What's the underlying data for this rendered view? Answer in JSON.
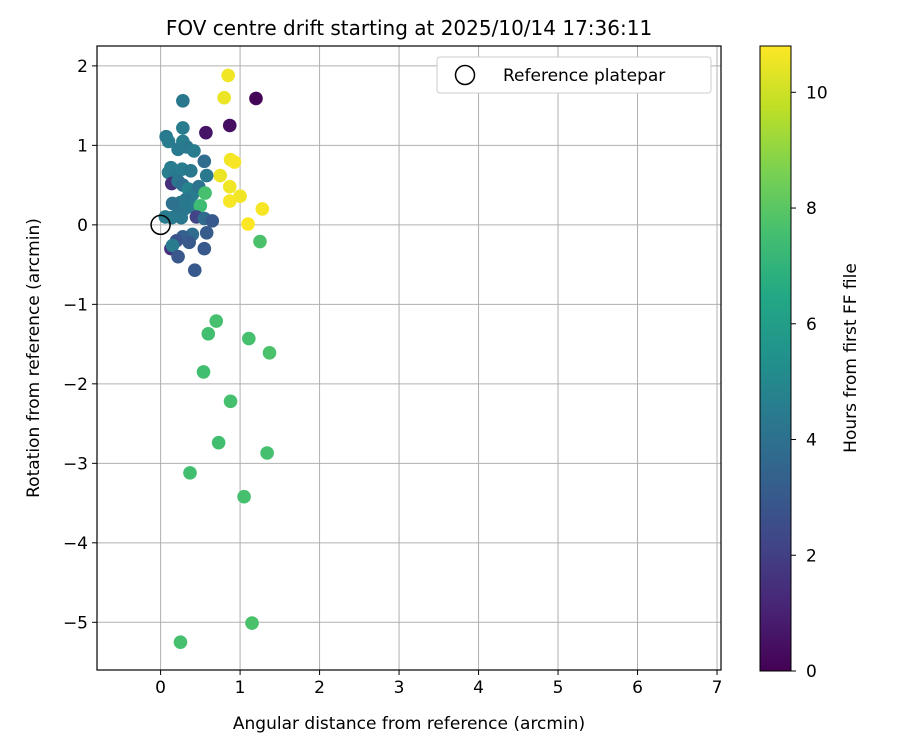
{
  "chart_data": {
    "type": "scatter",
    "title": "FOV centre drift starting at 2025/10/14 17:36:11",
    "xlabel": "Angular distance from reference (arcmin)",
    "ylabel": "Rotation from reference (arcmin)",
    "xlim": [
      -0.8,
      7.05
    ],
    "ylim": [
      -5.6,
      2.25
    ],
    "xticks": [
      0,
      1,
      2,
      3,
      4,
      5,
      6,
      7
    ],
    "yticks": [
      2,
      1,
      0,
      -1,
      -2,
      -3,
      -4,
      -5
    ],
    "grid": true,
    "legend": {
      "position": "top-right",
      "label": "Reference platepar"
    },
    "reference_point": {
      "x": 0,
      "y": 0
    },
    "colorbar": {
      "label": "Hours from first FF file",
      "colormap": "viridis",
      "min": 0,
      "max": 10.8,
      "ticks": [
        0,
        2,
        4,
        6,
        8,
        10
      ]
    },
    "points": [
      {
        "x": 0.85,
        "y": 1.88,
        "c": 10.6
      },
      {
        "x": 0.8,
        "y": 1.6,
        "c": 10.5
      },
      {
        "x": 1.2,
        "y": 1.59,
        "c": 0.1
      },
      {
        "x": 0.87,
        "y": 1.25,
        "c": 0.4
      },
      {
        "x": 0.57,
        "y": 1.16,
        "c": 0.6
      },
      {
        "x": 0.88,
        "y": 0.82,
        "c": 10.6
      },
      {
        "x": 0.93,
        "y": 0.79,
        "c": 10.7
      },
      {
        "x": 0.75,
        "y": 0.62,
        "c": 10.5
      },
      {
        "x": 0.87,
        "y": 0.48,
        "c": 10.6
      },
      {
        "x": 1.0,
        "y": 0.36,
        "c": 10.6
      },
      {
        "x": 0.87,
        "y": 0.3,
        "c": 10.7
      },
      {
        "x": 1.28,
        "y": 0.2,
        "c": 10.7
      },
      {
        "x": 1.1,
        "y": 0.01,
        "c": 10.8
      },
      {
        "x": 0.28,
        "y": 1.56,
        "c": 4.3
      },
      {
        "x": 0.28,
        "y": 1.22,
        "c": 4.5
      },
      {
        "x": 0.07,
        "y": 1.11,
        "c": 4.4
      },
      {
        "x": 0.1,
        "y": 1.05,
        "c": 4.5
      },
      {
        "x": 0.28,
        "y": 1.05,
        "c": 4.6
      },
      {
        "x": 0.33,
        "y": 0.98,
        "c": 4.3
      },
      {
        "x": 0.22,
        "y": 0.95,
        "c": 4.4
      },
      {
        "x": 0.42,
        "y": 0.93,
        "c": 4.5
      },
      {
        "x": 0.55,
        "y": 0.8,
        "c": 3.8
      },
      {
        "x": 0.13,
        "y": 0.72,
        "c": 4.5
      },
      {
        "x": 0.1,
        "y": 0.66,
        "c": 4.6
      },
      {
        "x": 0.18,
        "y": 0.63,
        "c": 4.4
      },
      {
        "x": 0.27,
        "y": 0.7,
        "c": 4.5
      },
      {
        "x": 0.38,
        "y": 0.68,
        "c": 4.3
      },
      {
        "x": 0.58,
        "y": 0.62,
        "c": 4.3
      },
      {
        "x": 0.14,
        "y": 0.52,
        "c": 1.5
      },
      {
        "x": 0.22,
        "y": 0.55,
        "c": 4.2
      },
      {
        "x": 0.28,
        "y": 0.5,
        "c": 3.9
      },
      {
        "x": 0.35,
        "y": 0.45,
        "c": 4.8
      },
      {
        "x": 0.4,
        "y": 0.38,
        "c": 4.5
      },
      {
        "x": 0.48,
        "y": 0.48,
        "c": 4.1
      },
      {
        "x": 0.56,
        "y": 0.4,
        "c": 7.6
      },
      {
        "x": 0.32,
        "y": 0.32,
        "c": 4.2
      },
      {
        "x": 0.25,
        "y": 0.28,
        "c": 4.3
      },
      {
        "x": 0.15,
        "y": 0.27,
        "c": 4.0
      },
      {
        "x": 0.42,
        "y": 0.22,
        "c": 4.5
      },
      {
        "x": 0.5,
        "y": 0.24,
        "c": 7.4
      },
      {
        "x": 0.3,
        "y": 0.2,
        "c": 4.3
      },
      {
        "x": 0.22,
        "y": 0.14,
        "c": 4.1
      },
      {
        "x": 0.06,
        "y": 0.1,
        "c": 4.5
      },
      {
        "x": 0.14,
        "y": 0.09,
        "c": 4.4
      },
      {
        "x": 0.26,
        "y": 0.09,
        "c": 4.3
      },
      {
        "x": 0.45,
        "y": 0.1,
        "c": 2.2
      },
      {
        "x": 0.55,
        "y": 0.08,
        "c": 3.7
      },
      {
        "x": 0.65,
        "y": 0.05,
        "c": 3.0
      },
      {
        "x": 0.58,
        "y": -0.1,
        "c": 3.1
      },
      {
        "x": 0.4,
        "y": -0.12,
        "c": 3.8
      },
      {
        "x": 0.28,
        "y": -0.15,
        "c": 3.3
      },
      {
        "x": 0.2,
        "y": -0.2,
        "c": 2.8
      },
      {
        "x": 0.36,
        "y": -0.22,
        "c": 3.0
      },
      {
        "x": 0.13,
        "y": -0.3,
        "c": 1.5
      },
      {
        "x": 0.15,
        "y": -0.26,
        "c": 4.5
      },
      {
        "x": 0.55,
        "y": -0.3,
        "c": 3.0
      },
      {
        "x": 0.22,
        "y": -0.4,
        "c": 2.9
      },
      {
        "x": 0.43,
        "y": -0.57,
        "c": 3.0
      },
      {
        "x": 1.25,
        "y": -0.21,
        "c": 7.7
      },
      {
        "x": 0.7,
        "y": -1.21,
        "c": 7.6
      },
      {
        "x": 0.6,
        "y": -1.37,
        "c": 7.5
      },
      {
        "x": 1.11,
        "y": -1.43,
        "c": 7.6
      },
      {
        "x": 1.37,
        "y": -1.61,
        "c": 7.7
      },
      {
        "x": 0.54,
        "y": -1.85,
        "c": 7.5
      },
      {
        "x": 0.88,
        "y": -2.22,
        "c": 7.6
      },
      {
        "x": 0.73,
        "y": -2.74,
        "c": 7.5
      },
      {
        "x": 1.34,
        "y": -2.87,
        "c": 7.6
      },
      {
        "x": 0.37,
        "y": -3.12,
        "c": 7.5
      },
      {
        "x": 1.05,
        "y": -3.42,
        "c": 7.6
      },
      {
        "x": 1.15,
        "y": -5.01,
        "c": 7.7
      },
      {
        "x": 0.25,
        "y": -5.25,
        "c": 7.6
      }
    ]
  }
}
